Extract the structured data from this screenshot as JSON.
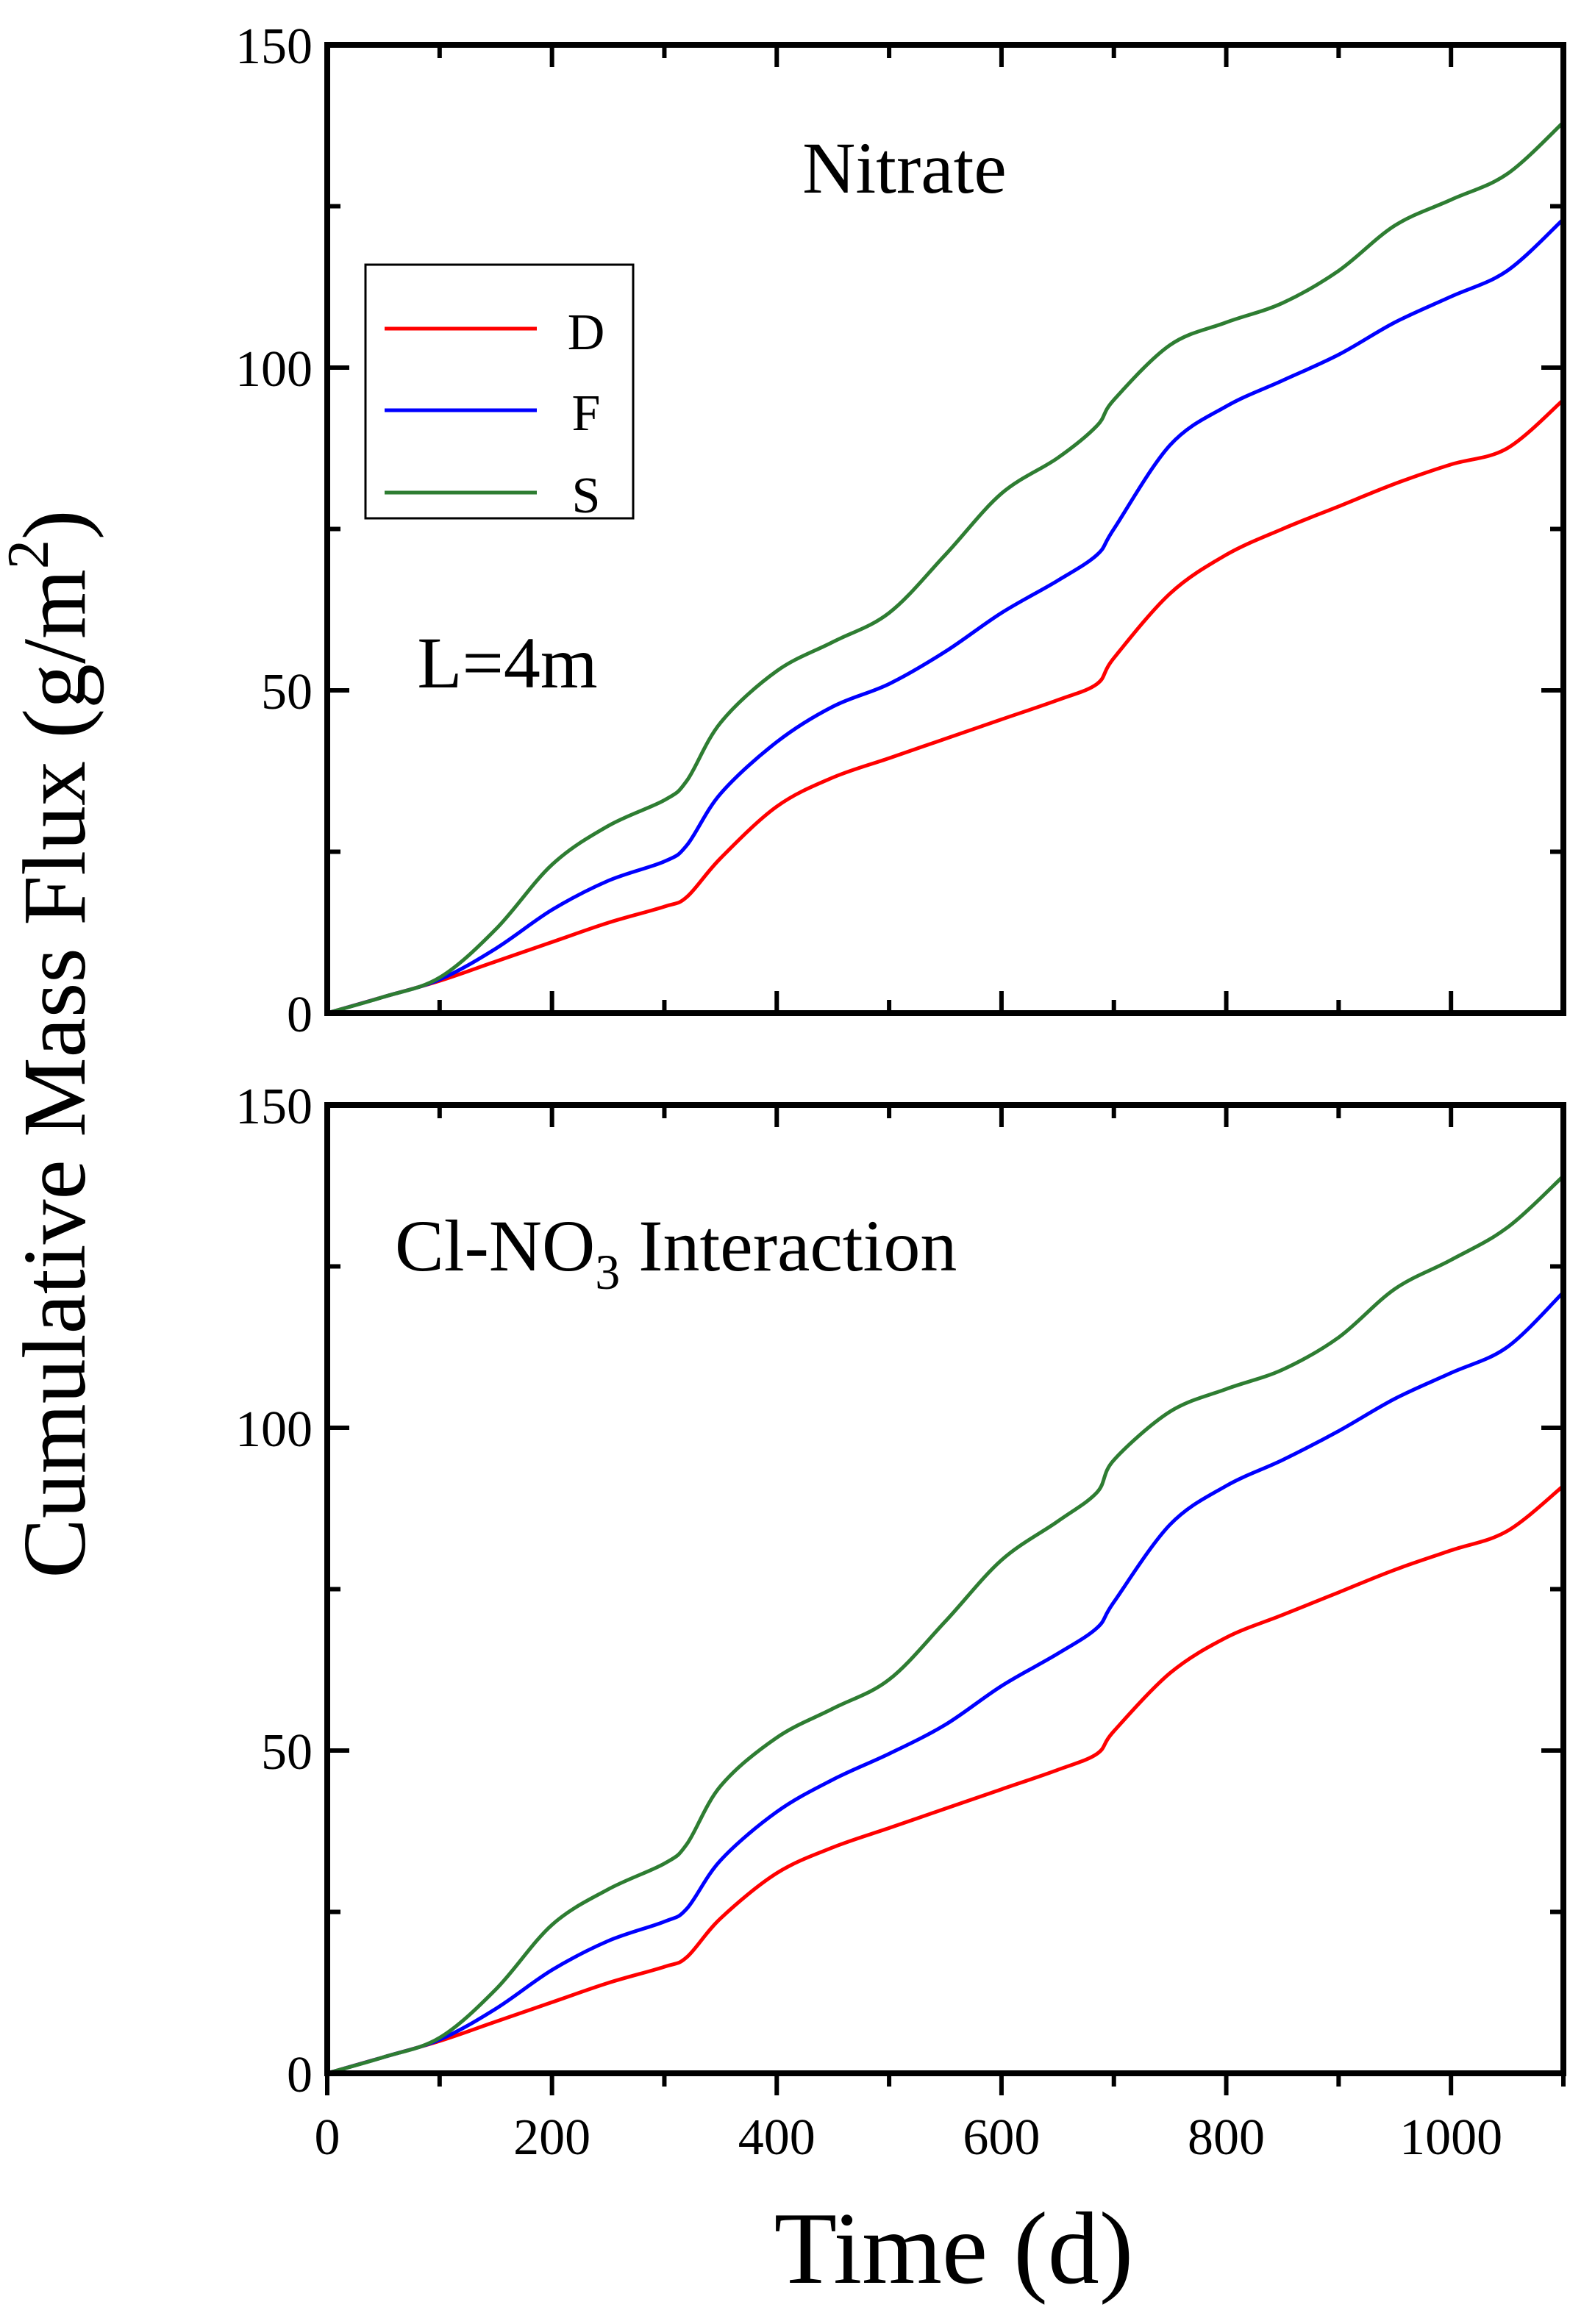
{
  "figure": {
    "ylabel_main": "Cumulative Mass Flux (g/m",
    "ylabel_sup": "2",
    "ylabel_close": ")",
    "xlabel": "Time (d)"
  },
  "colors": {
    "D": "#ff0000",
    "F": "#0000ff",
    "S": "#2e7d32"
  },
  "chart_data": [
    {
      "type": "line",
      "title": "Nitrate",
      "annotation": "L=4m",
      "xlim": [
        0,
        1100
      ],
      "ylim": [
        0,
        150
      ],
      "yticks": [
        0,
        50,
        100,
        150
      ],
      "ytick_labels": [
        "0",
        "50",
        "100",
        "150"
      ],
      "x": [
        0,
        50,
        100,
        150,
        200,
        250,
        300,
        320,
        350,
        400,
        450,
        500,
        550,
        600,
        650,
        685,
        700,
        750,
        800,
        850,
        900,
        950,
        1000,
        1050,
        1100
      ],
      "series": [
        {
          "name": "D",
          "values": [
            0,
            2.5,
            5,
            8,
            11,
            14,
            16.5,
            18,
            24,
            32,
            36.5,
            39.5,
            42.5,
            45.5,
            48.5,
            51,
            55,
            65,
            71,
            75,
            78.5,
            82,
            85,
            87.5,
            95
          ]
        },
        {
          "name": "F",
          "values": [
            0,
            2.5,
            5.2,
            10,
            16,
            20.5,
            23.5,
            26,
            34,
            42,
            47.5,
            51,
            56,
            62,
            67,
            71,
            75,
            88,
            94,
            98,
            102,
            107,
            111,
            115,
            123
          ]
        },
        {
          "name": "S",
          "values": [
            0,
            2.5,
            5.5,
            13,
            23,
            29,
            33,
            36,
            45,
            53,
            57.5,
            62,
            71,
            80.5,
            86,
            91,
            95,
            103.5,
            107,
            110,
            115,
            122,
            126,
            130,
            138
          ]
        }
      ]
    },
    {
      "type": "line",
      "title": "Cl-NO",
      "title_sub": "3",
      "title_tail": " Interaction",
      "xlim": [
        0,
        1100
      ],
      "ylim": [
        0,
        150
      ],
      "xticks": [
        0,
        200,
        400,
        600,
        800,
        1000
      ],
      "xtick_labels": [
        "0",
        "200",
        "400",
        "600",
        "800",
        "1000"
      ],
      "yticks": [
        0,
        50,
        100,
        150
      ],
      "ytick_labels": [
        "0",
        "50",
        "100",
        "150"
      ],
      "x": [
        0,
        50,
        100,
        150,
        200,
        250,
        300,
        320,
        350,
        400,
        450,
        500,
        550,
        600,
        650,
        685,
        700,
        750,
        800,
        850,
        900,
        950,
        1000,
        1050,
        1100
      ],
      "series": [
        {
          "name": "D",
          "values": [
            0,
            2.5,
            5,
            8,
            11,
            14,
            16.5,
            18,
            24,
            31,
            35,
            38,
            41,
            44,
            47,
            49.5,
            53,
            62,
            67.5,
            71,
            74.5,
            78,
            81,
            84,
            91
          ]
        },
        {
          "name": "F",
          "values": [
            0,
            2.5,
            5.2,
            10,
            16,
            20.5,
            23.5,
            25.5,
            33,
            40.5,
            45.5,
            49.5,
            54,
            60,
            65,
            69,
            73,
            85,
            91,
            95,
            99.5,
            104.5,
            108.5,
            112.5,
            121
          ]
        },
        {
          "name": "S",
          "values": [
            0,
            2.5,
            5.5,
            13,
            23,
            28.5,
            32.5,
            35.5,
            44.5,
            52,
            56.5,
            61,
            70,
            79.5,
            85.5,
            90,
            95,
            102.5,
            106,
            109,
            114,
            121.5,
            126,
            131,
            139
          ]
        }
      ]
    }
  ],
  "legend": {
    "position": "upper-left",
    "entries": [
      "D",
      "F",
      "S"
    ]
  }
}
